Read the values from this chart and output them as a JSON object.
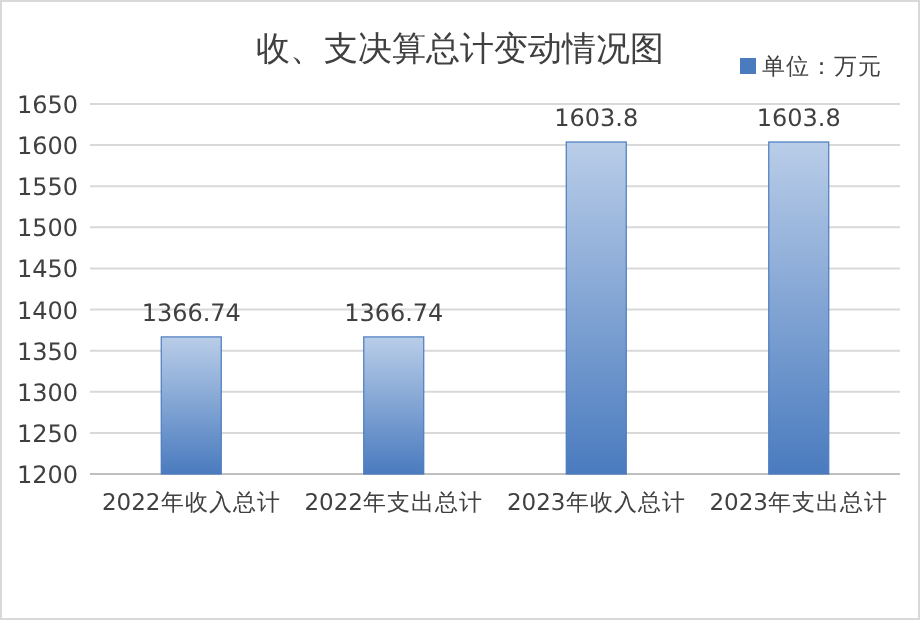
{
  "chart_data": {
    "type": "bar",
    "title": "收、支决算总计变动情况图",
    "categories": [
      "2022年收入总计",
      "2022年支出总计",
      "2023年收入总计",
      "2023年支出总计"
    ],
    "series": [
      {
        "name": "单位：万元",
        "color": "#4a7bbf",
        "values": [
          1366.74,
          1366.74,
          1603.8,
          1603.8
        ]
      }
    ],
    "ylim": [
      1200,
      1650
    ],
    "yticks": [
      1200,
      1250,
      1300,
      1350,
      1400,
      1450,
      1500,
      1550,
      1600,
      1650
    ],
    "grid": "y",
    "legend": "top right",
    "data_labels": true
  }
}
